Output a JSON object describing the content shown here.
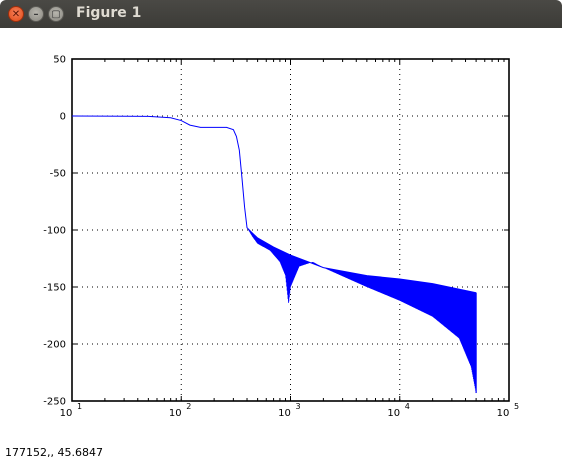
{
  "window": {
    "title": "Figure 1"
  },
  "status": {
    "coords": "177152,,  45.6847"
  },
  "chart_data": {
    "type": "line",
    "x_scale": "log",
    "xlim": [
      10,
      100000
    ],
    "ylim": [
      -250,
      50
    ],
    "grid": true,
    "xticks": [
      10,
      100,
      1000,
      10000,
      100000
    ],
    "xtick_labels": [
      {
        "base": "10",
        "exp": "1"
      },
      {
        "base": "10",
        "exp": "2"
      },
      {
        "base": "10",
        "exp": "3"
      },
      {
        "base": "10",
        "exp": "4"
      },
      {
        "base": "10",
        "exp": "5"
      }
    ],
    "yticks": [
      50,
      0,
      -50,
      -100,
      -150,
      -200,
      -250
    ],
    "ytick_labels": [
      "50",
      "0",
      "-50",
      "-100",
      "-150",
      "-200",
      "-250"
    ],
    "series": [
      {
        "color": "#0000ff",
        "points": [
          [
            10,
            0
          ],
          [
            50,
            -0.3
          ],
          [
            80,
            -1.5
          ],
          [
            100,
            -4
          ],
          [
            120,
            -8
          ],
          [
            150,
            -10
          ],
          [
            200,
            -10
          ],
          [
            260,
            -10
          ],
          [
            300,
            -12
          ],
          [
            320,
            -18
          ],
          [
            340,
            -30
          ],
          [
            360,
            -55
          ],
          [
            380,
            -80
          ],
          [
            400,
            -98
          ],
          [
            440,
            -102
          ],
          [
            500,
            -107
          ],
          [
            700,
            -115
          ],
          [
            1000,
            -122
          ],
          [
            2000,
            -133
          ],
          [
            5000,
            -140
          ],
          [
            10000,
            -143
          ],
          [
            20000,
            -147
          ],
          [
            50000,
            -155
          ]
        ],
        "lower_envelope": [
          [
            400,
            -98
          ],
          [
            450,
            -106
          ],
          [
            500,
            -112
          ],
          [
            650,
            -118
          ],
          [
            800,
            -128
          ],
          [
            900,
            -140
          ],
          [
            960,
            -165
          ],
          [
            1000,
            -150
          ],
          [
            1200,
            -132
          ],
          [
            1600,
            -128
          ],
          [
            2000,
            -133
          ],
          [
            5000,
            -150
          ],
          [
            10000,
            -162
          ],
          [
            20000,
            -176
          ],
          [
            35000,
            -195
          ],
          [
            45000,
            -220
          ],
          [
            50000,
            -243
          ]
        ]
      }
    ]
  }
}
